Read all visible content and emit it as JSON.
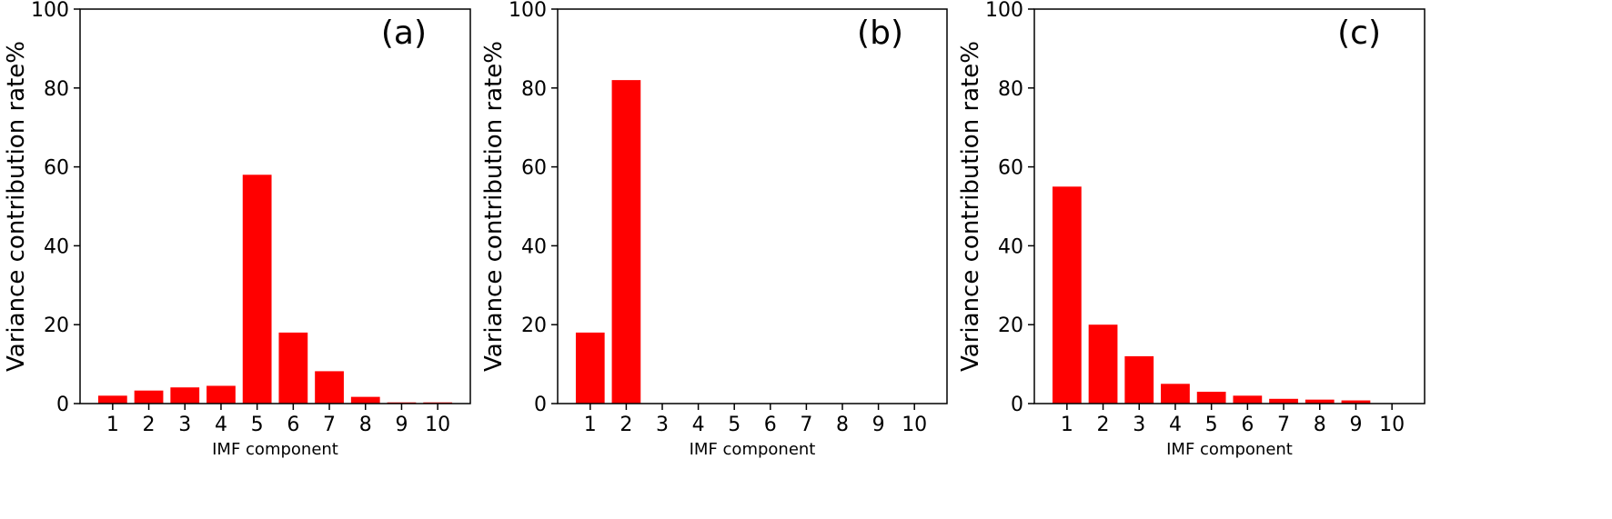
{
  "chart_data": [
    {
      "type": "bar",
      "panel_label": "(a)",
      "categories": [
        "1",
        "2",
        "3",
        "4",
        "5",
        "6",
        "7",
        "8",
        "9",
        "10"
      ],
      "values": [
        2.0,
        3.3,
        4.1,
        4.5,
        58.0,
        18.0,
        8.2,
        1.7,
        0.3,
        0.3
      ],
      "xlabel": "IMF component",
      "ylabel": "Variance contribution rate%",
      "ylim": [
        0,
        100
      ],
      "yticks": [
        0,
        20,
        40,
        60,
        80,
        100
      ],
      "bar_color": "#ff0000"
    },
    {
      "type": "bar",
      "panel_label": "(b)",
      "categories": [
        "1",
        "2",
        "3",
        "4",
        "5",
        "6",
        "7",
        "8",
        "9",
        "10"
      ],
      "values": [
        18.0,
        82.0,
        0,
        0,
        0,
        0,
        0,
        0,
        0,
        0
      ],
      "xlabel": "IMF component",
      "ylabel": "Variance contribution rate%",
      "ylim": [
        0,
        100
      ],
      "yticks": [
        0,
        20,
        40,
        60,
        80,
        100
      ],
      "bar_color": "#ff0000"
    },
    {
      "type": "bar",
      "panel_label": "(c)",
      "categories": [
        "1",
        "2",
        "3",
        "4",
        "5",
        "6",
        "7",
        "8",
        "9",
        "10"
      ],
      "values": [
        55.0,
        20.0,
        12.0,
        5.0,
        3.0,
        2.0,
        1.2,
        1.0,
        0.8,
        0
      ],
      "xlabel": "IMF component",
      "ylabel": "Variance contribution rate%",
      "ylim": [
        0,
        100
      ],
      "yticks": [
        0,
        20,
        40,
        60,
        80,
        100
      ],
      "bar_color": "#ff0000"
    }
  ]
}
